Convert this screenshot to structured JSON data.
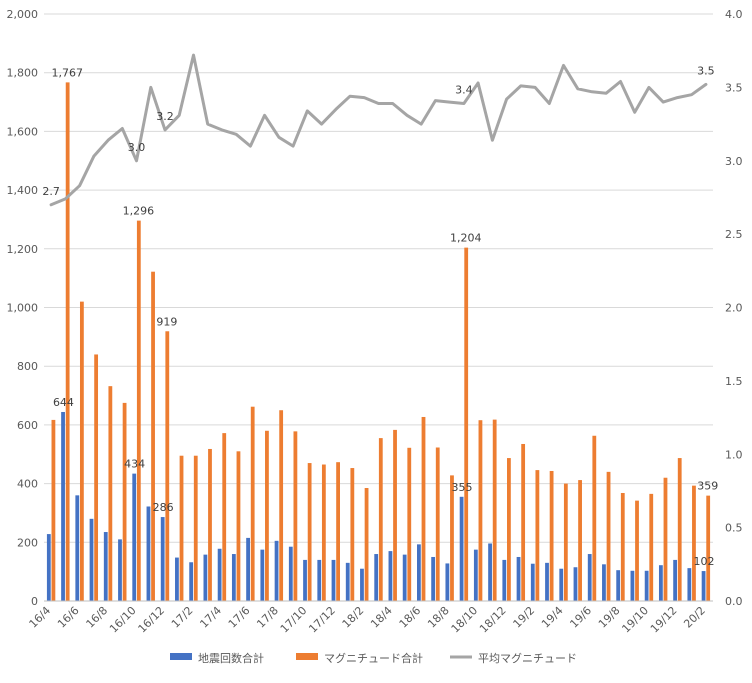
{
  "chart_data": {
    "type": "bar",
    "categories": [
      "16/4",
      "16/5",
      "16/6",
      "16/7",
      "16/8",
      "16/9",
      "16/10",
      "16/11",
      "16/12",
      "17/1",
      "17/2",
      "17/3",
      "17/4",
      "17/5",
      "17/6",
      "17/7",
      "17/8",
      "17/9",
      "17/10",
      "17/11",
      "17/12",
      "18/1",
      "18/2",
      "18/3",
      "18/4",
      "18/5",
      "18/6",
      "18/7",
      "18/8",
      "18/9",
      "18/10",
      "18/11",
      "18/12",
      "19/1",
      "19/2",
      "19/3",
      "19/4",
      "19/5",
      "19/6",
      "19/7",
      "19/8",
      "19/9",
      "19/10",
      "19/11",
      "19/12",
      "20/1",
      "20/2"
    ],
    "x_tick_labels": [
      "16/4",
      "16/6",
      "16/8",
      "16/10",
      "16/12",
      "17/2",
      "17/4",
      "17/6",
      "17/8",
      "17/10",
      "17/12",
      "18/2",
      "18/4",
      "18/6",
      "18/8",
      "18/10",
      "18/12",
      "19/2",
      "19/4",
      "19/6",
      "19/8",
      "19/10",
      "19/12",
      "20/2"
    ],
    "y_left": {
      "min": 0,
      "max": 2000,
      "step": 200,
      "ticks": [
        "0",
        "200",
        "400",
        "600",
        "800",
        "1,000",
        "1,200",
        "1,400",
        "1,600",
        "1,800",
        "2,000"
      ]
    },
    "y_right": {
      "min": 0,
      "max": 4.0,
      "step": 0.5,
      "ticks": [
        "0.0",
        "0.5",
        "1.0",
        "1.5",
        "2.0",
        "2.5",
        "3.0",
        "3.5",
        "4.0"
      ]
    },
    "grid": true,
    "legend_position": "bottom",
    "series": [
      {
        "name": "地震回数合計",
        "type": "bar",
        "axis": "left",
        "color": "#4472C4",
        "values": [
          228,
          644,
          360,
          280,
          235,
          210,
          434,
          322,
          286,
          148,
          132,
          158,
          178,
          160,
          215,
          175,
          205,
          185,
          140,
          140,
          140,
          130,
          110,
          160,
          170,
          158,
          193,
          150,
          128,
          355,
          175,
          196,
          140,
          150,
          127,
          130,
          110,
          115,
          160,
          125,
          105,
          103,
          103,
          122,
          140,
          112,
          102
        ]
      },
      {
        "name": "マグニチュード合計",
        "type": "bar",
        "axis": "left",
        "color": "#ED7D31",
        "values": [
          617,
          1767,
          1020,
          840,
          732,
          675,
          1296,
          1122,
          919,
          495,
          495,
          518,
          572,
          510,
          662,
          580,
          650,
          578,
          470,
          465,
          473,
          453,
          385,
          555,
          583,
          522,
          627,
          523,
          428,
          1204,
          616,
          618,
          487,
          535,
          446,
          443,
          400,
          412,
          563,
          440,
          368,
          342,
          365,
          420,
          487,
          393,
          359
        ]
      },
      {
        "name": "平均マグニチュード",
        "type": "line",
        "axis": "right",
        "color": "#A5A5A5",
        "values": [
          2.7,
          2.74,
          2.83,
          3.03,
          3.14,
          3.22,
          3.0,
          3.5,
          3.21,
          3.31,
          3.72,
          3.25,
          3.21,
          3.18,
          3.1,
          3.31,
          3.16,
          3.1,
          3.34,
          3.25,
          3.35,
          3.44,
          3.43,
          3.39,
          3.39,
          3.31,
          3.25,
          3.41,
          3.4,
          3.39,
          3.53,
          3.14,
          3.42,
          3.51,
          3.5,
          3.39,
          3.65,
          3.49,
          3.47,
          3.46,
          3.54,
          3.33,
          3.5,
          3.4,
          3.43,
          3.45,
          3.52
        ]
      }
    ],
    "data_labels": [
      {
        "series": 0,
        "index": 1,
        "text": "644"
      },
      {
        "series": 0,
        "index": 6,
        "text": "434"
      },
      {
        "series": 0,
        "index": 8,
        "text": "286"
      },
      {
        "series": 0,
        "index": 29,
        "text": "355"
      },
      {
        "series": 0,
        "index": 46,
        "text": "102"
      },
      {
        "series": 1,
        "index": 1,
        "text": "1,767"
      },
      {
        "series": 1,
        "index": 6,
        "text": "1,296"
      },
      {
        "series": 1,
        "index": 8,
        "text": "919"
      },
      {
        "series": 1,
        "index": 29,
        "text": "1,204"
      },
      {
        "series": 1,
        "index": 46,
        "text": "359"
      },
      {
        "series": 2,
        "index": 0,
        "text": "2.7"
      },
      {
        "series": 2,
        "index": 6,
        "text": "3.0"
      },
      {
        "series": 2,
        "index": 8,
        "text": "3.2"
      },
      {
        "series": 2,
        "index": 29,
        "text": "3.4"
      },
      {
        "series": 2,
        "index": 46,
        "text": "3.5"
      }
    ]
  }
}
